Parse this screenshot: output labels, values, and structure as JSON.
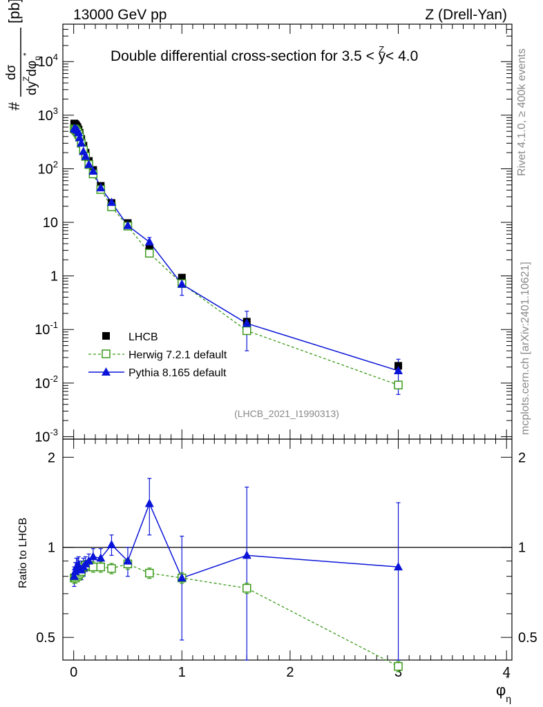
{
  "header": {
    "energy": "13000 GeV pp",
    "process": "Z (Drell-Yan)",
    "title": "Double differential cross-section for 3.5 < y",
    "title_sup": "Z",
    "title_end": " < 4.0"
  },
  "side_text": {
    "rivet": "Rivet 4.1.0, ≥ 400k events",
    "mcplots": "mcplots.cern.ch [arXiv:2401.10621]"
  },
  "analysis_id": "(LHCB_2021_I1990313)",
  "ylabel_main": {
    "hash": "#",
    "num": "dσ",
    "den": "dy",
    "den_sup": "Z",
    "den_phi": "dφ",
    "den_sub": "η",
    "den_star": "*",
    "unit": "[pb]"
  },
  "ylabel_ratio": "Ratio to LHCB",
  "xlabel": {
    "phi": "φ",
    "sub": "η",
    "sup": "*"
  },
  "ticks": {
    "x": [
      "0",
      "1",
      "2",
      "3",
      "4"
    ],
    "main_y": [
      "10",
      "10",
      "10",
      "1",
      "10",
      "10",
      "10",
      "10"
    ],
    "main_y_exp": [
      "-3",
      "-2",
      "-1",
      "",
      "",
      "2",
      "3",
      "4"
    ],
    "ratio_y": [
      "0.5",
      "1",
      "2"
    ]
  },
  "legend": {
    "lhcb": "LHCB",
    "herwig": "Herwig 7.2.1 default",
    "pythia": "Pythia 8.165 default"
  },
  "colors": {
    "lhcb": "#000000",
    "herwig": "#3a9a1a",
    "pythia": "#0a14d8"
  },
  "chart_data": {
    "type": "scatter",
    "title": "Double differential cross-section for 3.5 < y^Z < 4.0",
    "xlabel": "φ*_η",
    "ylabel": "d²σ/dy^Z dφ*_η [pb]",
    "xlim": [
      -0.1,
      4.05
    ],
    "ylim": [
      0.0009,
      50000
    ],
    "yscale": "log",
    "ratio_ylim": [
      0.42,
      2.3
    ],
    "x": [
      0.005,
      0.015,
      0.025,
      0.035,
      0.045,
      0.055,
      0.07,
      0.09,
      0.11,
      0.14,
      0.18,
      0.25,
      0.35,
      0.5,
      0.7,
      1.0,
      1.6,
      3.0
    ],
    "series": [
      {
        "name": "LHCB",
        "values": [
          700,
          680,
          640,
          600,
          540,
          470,
          360,
          270,
          200,
          140,
          95,
          48,
          23,
          9.7,
          3.3,
          0.93,
          0.14,
          0.021
        ]
      },
      {
        "name": "Herwig 7.2.1 default",
        "values": [
          555,
          540,
          510,
          480,
          440,
          390,
          300,
          225,
          170,
          120,
          80,
          41,
          19.5,
          8.5,
          2.65,
          0.72,
          0.095,
          0.0092
        ],
        "ratio": [
          0.79,
          0.79,
          0.8,
          0.8,
          0.81,
          0.82,
          0.83,
          0.86,
          0.87,
          0.87,
          0.86,
          0.86,
          0.85,
          0.88,
          0.82,
          0.79,
          0.73,
          0.4
        ]
      },
      {
        "name": "Pythia 8.165 default",
        "values": [
          560,
          550,
          540,
          520,
          470,
          380,
          300,
          210,
          170,
          120,
          90,
          44,
          23.5,
          8.7,
          4.3,
          0.7,
          0.13,
          0.017
        ],
        "ratio": [
          0.8,
          0.83,
          0.86,
          0.86,
          0.87,
          0.84,
          0.84,
          0.86,
          0.88,
          0.9,
          0.93,
          0.92,
          1.02,
          0.9,
          1.4,
          0.79,
          0.94,
          0.86
        ],
        "ratio_err": [
          0.06,
          0.06,
          0.06,
          0.06,
          0.06,
          0.06,
          0.06,
          0.06,
          0.05,
          0.05,
          0.06,
          0.07,
          0.08,
          0.1,
          0.3,
          0.3,
          0.65,
          0.55
        ]
      }
    ],
    "ratio_reference": 1,
    "legend_position": "lower-left"
  }
}
